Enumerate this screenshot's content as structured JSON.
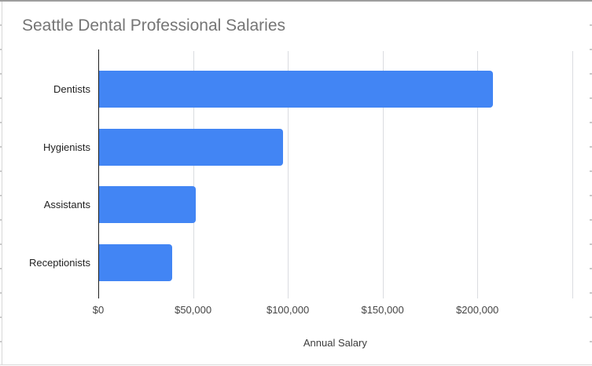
{
  "chart_data": {
    "type": "bar",
    "orientation": "horizontal",
    "title": "Seattle Dental Professional Salaries",
    "categories": [
      "Dentists",
      "Hygienists",
      "Assistants",
      "Receptionists"
    ],
    "values": [
      208000,
      97000,
      51000,
      38500
    ],
    "xlabel": "Annual Salary",
    "ylabel": "",
    "xlim": [
      0,
      250000
    ],
    "x_ticks": [
      {
        "label": "$0",
        "value": 0
      },
      {
        "label": "$50,000",
        "value": 50000
      },
      {
        "label": "$100,000",
        "value": 100000
      },
      {
        "label": "$150,000",
        "value": 150000
      },
      {
        "label": "$200,000",
        "value": 200000
      }
    ],
    "gridline_values": [
      50000,
      100000,
      150000,
      200000,
      250000
    ],
    "grid": true,
    "legend": false,
    "colors": {
      "bar": "#4285f4",
      "title_text": "#757575",
      "category_text": "#222222",
      "tick_text": "#444444",
      "gridline": "#dadce0",
      "axis_baseline": "#1f1f1f"
    }
  }
}
